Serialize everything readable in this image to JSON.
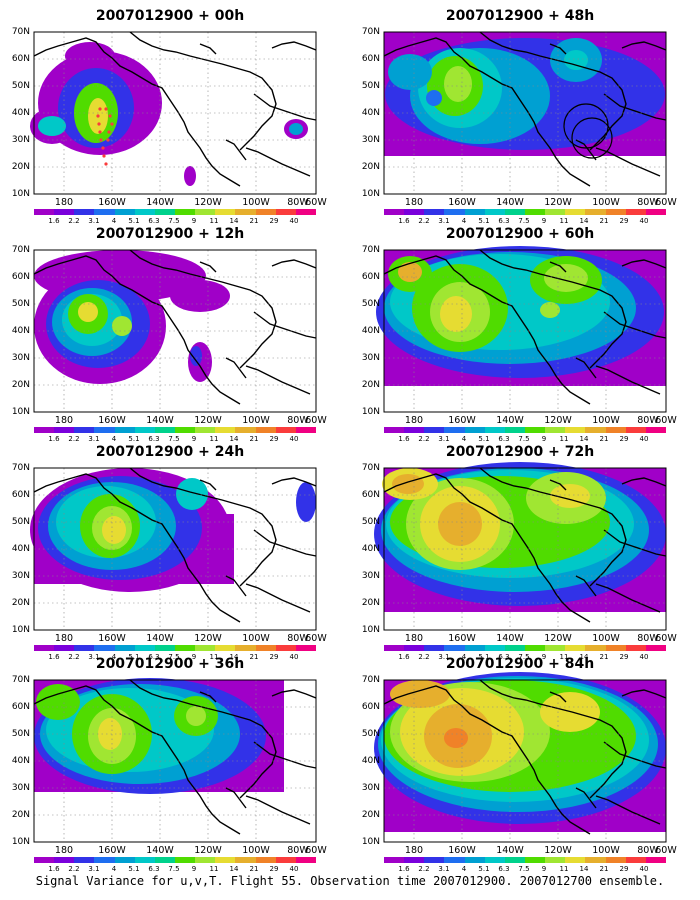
{
  "panels": [
    {
      "title": "2007012900 + 00h"
    },
    {
      "title": "2007012900 + 48h"
    },
    {
      "title": "2007012900 + 12h"
    },
    {
      "title": "2007012900 + 60h"
    },
    {
      "title": "2007012900 + 24h"
    },
    {
      "title": "2007012900 + 72h"
    },
    {
      "title": "2007012900 + 36h"
    },
    {
      "title": "2007012900 + 84h"
    }
  ],
  "lat_labels": [
    "70N",
    "60N",
    "50N",
    "40N",
    "30N",
    "20N",
    "10N"
  ],
  "lon_labels": [
    "180",
    "160W",
    "140W",
    "120W",
    "100W",
    "80W",
    "60W"
  ],
  "colorbar": {
    "labels": [
      "1.6",
      "2.2",
      "3.1",
      "4",
      "5.1",
      "6.3",
      "7.5",
      "9",
      "11",
      "14",
      "21",
      "29",
      "40"
    ],
    "colors": [
      "#a000c8",
      "#7a00dc",
      "#3232e8",
      "#1e6ef0",
      "#00a0d2",
      "#00c8c8",
      "#00d28c",
      "#50dc00",
      "#a0e632",
      "#e6dc32",
      "#e6af2d",
      "#f08228",
      "#fa3c3c",
      "#f00082"
    ]
  },
  "caption": "Signal Variance for u,v,T. Flight 55. Observation time 2007012900. 2007012700 ensemble."
}
